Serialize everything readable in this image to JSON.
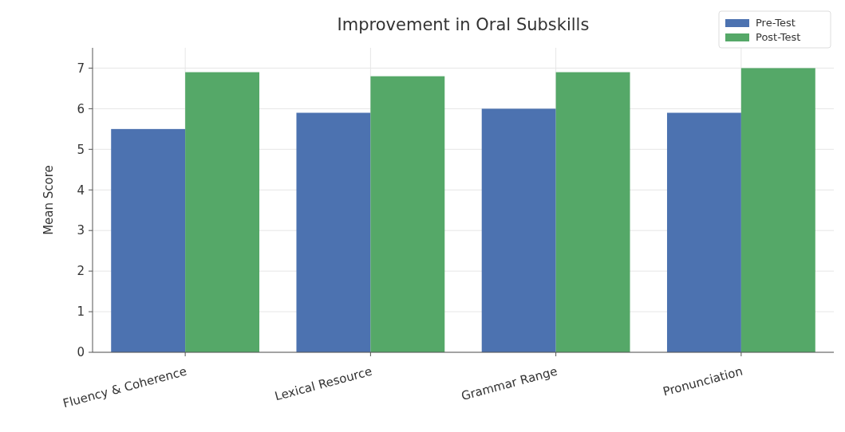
{
  "chart_data": {
    "type": "bar",
    "title": "Improvement in Oral Subskills",
    "ylabel": "Mean Score",
    "categories": [
      "Fluency & Coherence",
      "Lexical Resource",
      "Grammar Range",
      "Pronunciation"
    ],
    "series": [
      {
        "name": "Pre-Test",
        "color": "#4c72b0",
        "values": [
          5.5,
          5.9,
          6.0,
          5.9
        ]
      },
      {
        "name": "Post-Test",
        "color": "#55a868",
        "values": [
          6.9,
          6.8,
          6.9,
          7.0
        ]
      }
    ],
    "ylim": [
      0,
      7.5
    ],
    "yticks": [
      0,
      1,
      2,
      3,
      4,
      5,
      6,
      7
    ],
    "grid": true,
    "legend": "top right"
  }
}
